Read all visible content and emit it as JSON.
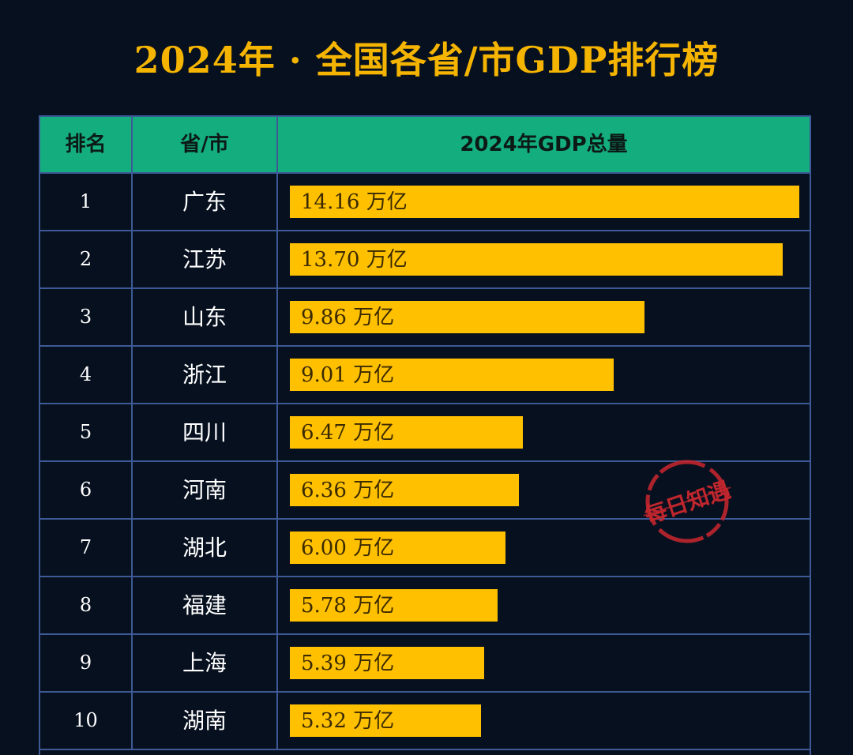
{
  "title": "2024年 · 全国各省/市GDP排行榜",
  "table": {
    "headers": {
      "rank": "排名",
      "province": "省/市",
      "gdp": "2024年GDP总量"
    }
  },
  "colors": {
    "background": "#07101f",
    "title": "#f4b400",
    "header_bg": "#14ae7e",
    "bar": "#ffc000",
    "grid": "#3d5a96",
    "stamp": "#c0262d"
  },
  "watermark": {
    "text": "每日知遇"
  },
  "chart_data": {
    "type": "bar",
    "orientation": "horizontal",
    "title": "2024年 · 全国各省/市GDP排行榜",
    "unit": "万亿",
    "categories": [
      "广东",
      "江苏",
      "山东",
      "浙江",
      "四川",
      "河南",
      "湖北",
      "福建",
      "上海",
      "湖南"
    ],
    "ranks": [
      "1",
      "2",
      "3",
      "4",
      "5",
      "6",
      "7",
      "8",
      "9",
      "10"
    ],
    "values": [
      14.16,
      13.7,
      9.86,
      9.01,
      6.47,
      6.36,
      6.0,
      5.78,
      5.39,
      5.32
    ],
    "labels": [
      "14.16 万亿",
      "13.70 万亿",
      "9.86 万亿",
      "9.01 万亿",
      "6.47 万亿",
      "6.36 万亿",
      "6.00 万亿",
      "5.78 万亿",
      "5.39 万亿",
      "5.32 万亿"
    ],
    "xlim": [
      0,
      14.16
    ]
  }
}
